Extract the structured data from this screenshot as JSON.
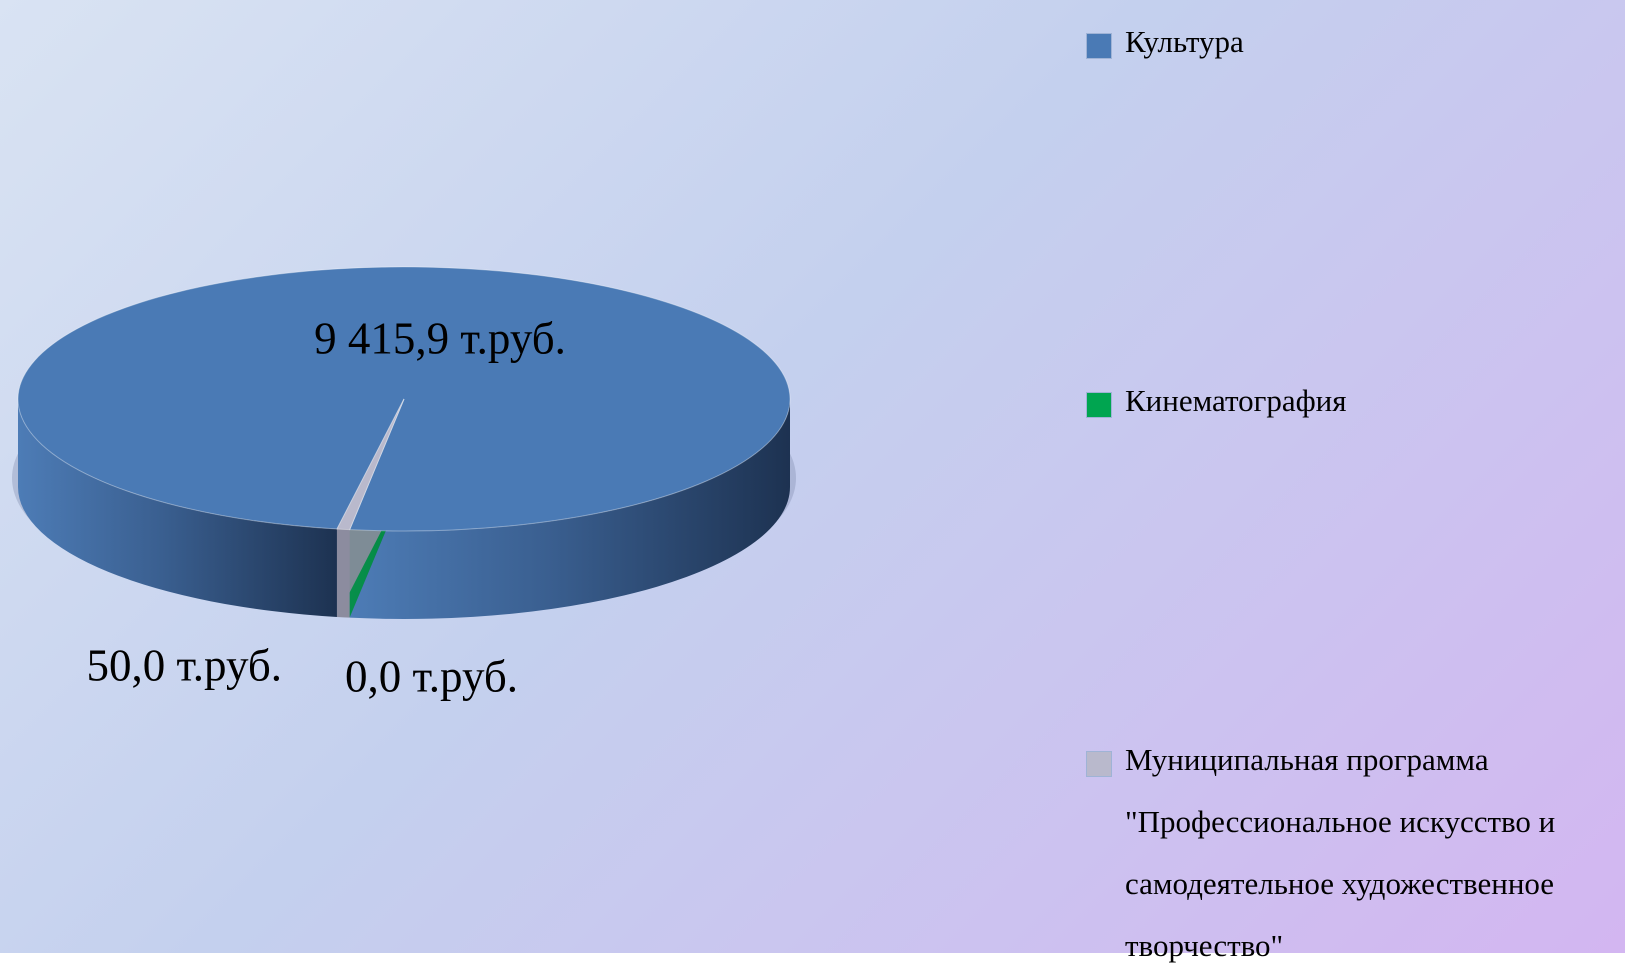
{
  "chart_data": {
    "type": "pie3d",
    "categories": [
      "Культура",
      "Кинематография",
      "Муниципальная программа \"Профессиональное искусство и самодеятельное художественное творчество\""
    ],
    "values": [
      9415.9,
      0.0,
      50.0
    ],
    "value_labels": [
      "9 415,9 т.руб.",
      "0,0 т.руб.",
      "50,0 т.руб."
    ],
    "colors": [
      "#4a7ab5",
      "#00a550",
      "#b9b9cc"
    ],
    "legend": "right"
  }
}
